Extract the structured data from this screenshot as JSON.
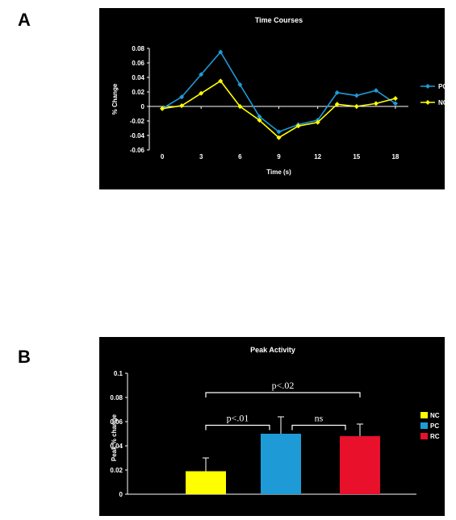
{
  "panels": {
    "a": {
      "label": "A"
    },
    "b": {
      "label": "B"
    }
  },
  "chart_data": [
    {
      "type": "line",
      "title": "Time Courses",
      "xlabel": "Time (s)",
      "ylabel": "% Change",
      "x": [
        0,
        1.5,
        3,
        4.5,
        6,
        7.5,
        9,
        10.5,
        12,
        13.5,
        15,
        16.5,
        18
      ],
      "xticks": [
        0,
        3,
        6,
        9,
        12,
        15,
        18
      ],
      "xlim": [
        -1,
        19
      ],
      "ylim": [
        -0.06,
        0.08
      ],
      "yticks": [
        -0.06,
        -0.04,
        -0.02,
        0,
        0.02,
        0.04,
        0.06,
        0.08
      ],
      "ytick_labels": [
        "-0.06",
        "-0.04",
        "-0.02",
        "0",
        "0.02",
        "0.04",
        "0.06",
        "0.08"
      ],
      "grid": false,
      "legend_position": "right",
      "background": "#000000",
      "series": [
        {
          "name": "PC",
          "color": "#1e9bd7",
          "values": [
            -0.003,
            0.013,
            0.044,
            0.075,
            0.03,
            -0.014,
            -0.035,
            -0.025,
            -0.019,
            0.019,
            0.015,
            0.022,
            0.004
          ]
        },
        {
          "name": "NC",
          "color": "#ffff00",
          "values": [
            -0.003,
            0.001,
            0.018,
            0.035,
            0.0,
            -0.019,
            -0.043,
            -0.027,
            -0.022,
            0.003,
            0.0,
            0.004,
            0.011
          ]
        }
      ]
    },
    {
      "type": "bar",
      "title": "Peak Activity",
      "xlabel": "",
      "ylabel": "Peak % change",
      "categories": [
        "NC",
        "PC",
        "RC"
      ],
      "values": [
        0.019,
        0.05,
        0.048
      ],
      "errors": [
        0.011,
        0.014,
        0.01
      ],
      "colors": [
        "#ffff00",
        "#1e9bd7",
        "#e8102a"
      ],
      "ylim": [
        0,
        0.1
      ],
      "yticks": [
        0,
        0.02,
        0.04,
        0.06,
        0.08,
        0.1
      ],
      "ytick_labels": [
        "0",
        "0.02",
        "0.04",
        "0.06",
        "0.08",
        "0.1"
      ],
      "grid": false,
      "legend_position": "right",
      "background": "#000000",
      "annotations": [
        {
          "text": "p<.02",
          "from": 0,
          "to": 2,
          "level": 0.084
        },
        {
          "text": "p<.01",
          "from": 0,
          "to": 1,
          "level": 0.057
        },
        {
          "text": "ns",
          "from": 1,
          "to": 2,
          "level": 0.057
        }
      ]
    }
  ]
}
